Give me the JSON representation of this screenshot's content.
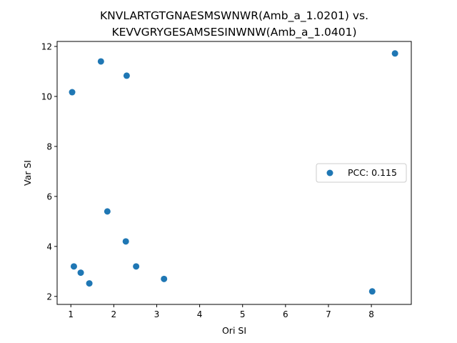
{
  "chart_data": {
    "type": "scatter",
    "title": [
      "KNVLARTGTGNAESMSWNWR(Amb_a_1.0201) vs.",
      "KEVVGRYGESAMSESINWNW(Amb_a_1.0401)"
    ],
    "xlabel": "Ori SI",
    "ylabel": "Var SI",
    "xlim": [
      0.68,
      8.93
    ],
    "ylim": [
      1.68,
      12.2
    ],
    "xticks": [
      1,
      2,
      3,
      4,
      5,
      6,
      7,
      8
    ],
    "yticks": [
      2,
      4,
      6,
      8,
      10,
      12
    ],
    "grid": false,
    "legend_position": "center-right",
    "series": [
      {
        "name": "PCC: 0.115",
        "color": "#1f77b4",
        "points": [
          {
            "x": 1.03,
            "y": 10.17
          },
          {
            "x": 1.7,
            "y": 11.4
          },
          {
            "x": 2.3,
            "y": 10.83
          },
          {
            "x": 8.55,
            "y": 11.72
          },
          {
            "x": 1.85,
            "y": 5.4
          },
          {
            "x": 2.28,
            "y": 4.2
          },
          {
            "x": 1.07,
            "y": 3.2
          },
          {
            "x": 2.52,
            "y": 3.2
          },
          {
            "x": 1.23,
            "y": 2.95
          },
          {
            "x": 1.43,
            "y": 2.52
          },
          {
            "x": 3.17,
            "y": 2.7
          },
          {
            "x": 8.02,
            "y": 2.2
          }
        ]
      }
    ]
  }
}
